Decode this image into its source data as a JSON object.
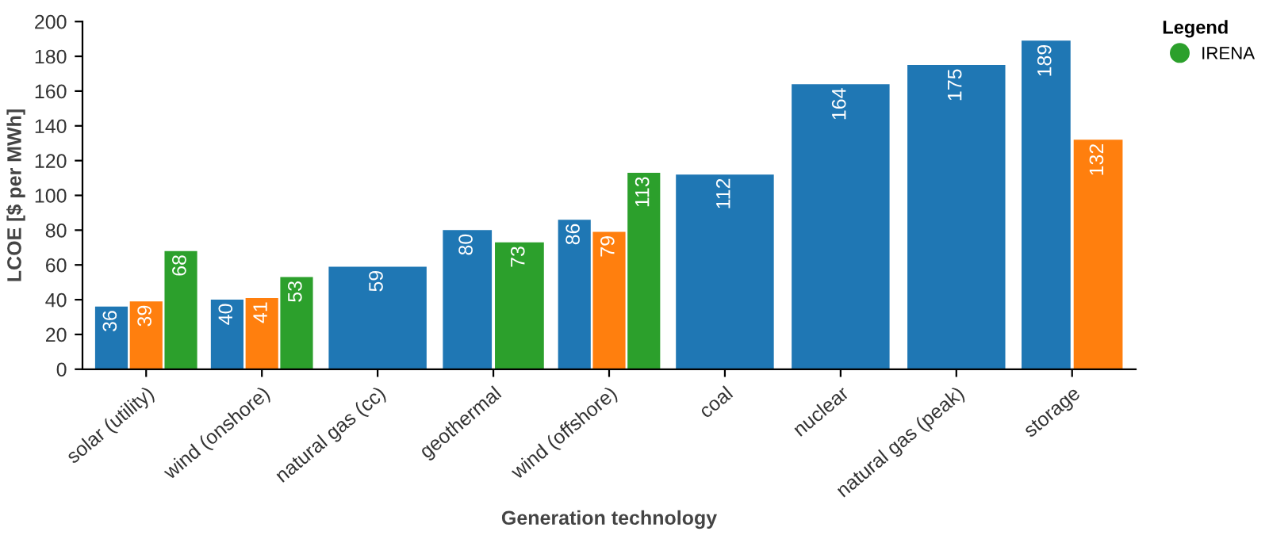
{
  "chart_data": {
    "type": "bar",
    "xlabel": "Generation technology",
    "ylabel": "LCOE [$ per MWh]",
    "legend_title": "Legend",
    "categories": [
      "solar (utility)",
      "wind (onshore)",
      "natural gas (cc)",
      "geothermal",
      "wind (offshore)",
      "coal",
      "nuclear",
      "natural gas (peak)",
      "storage"
    ],
    "series": [
      {
        "color": "#1f77b4",
        "values": [
          36,
          40,
          59,
          80,
          86,
          112,
          164,
          175,
          189
        ]
      },
      {
        "color": "#ff7f0e",
        "values": [
          39,
          41,
          null,
          null,
          79,
          null,
          null,
          null,
          132
        ]
      },
      {
        "name": "IRENA",
        "color": "#2ca02c",
        "values": [
          68,
          53,
          null,
          73,
          113,
          null,
          null,
          null,
          null
        ]
      }
    ],
    "ylim": [
      0,
      200
    ],
    "yticks": [
      0,
      20,
      40,
      60,
      80,
      100,
      120,
      140,
      160,
      180,
      200
    ],
    "data_labels": true,
    "grid": false,
    "legend": "top right"
  }
}
